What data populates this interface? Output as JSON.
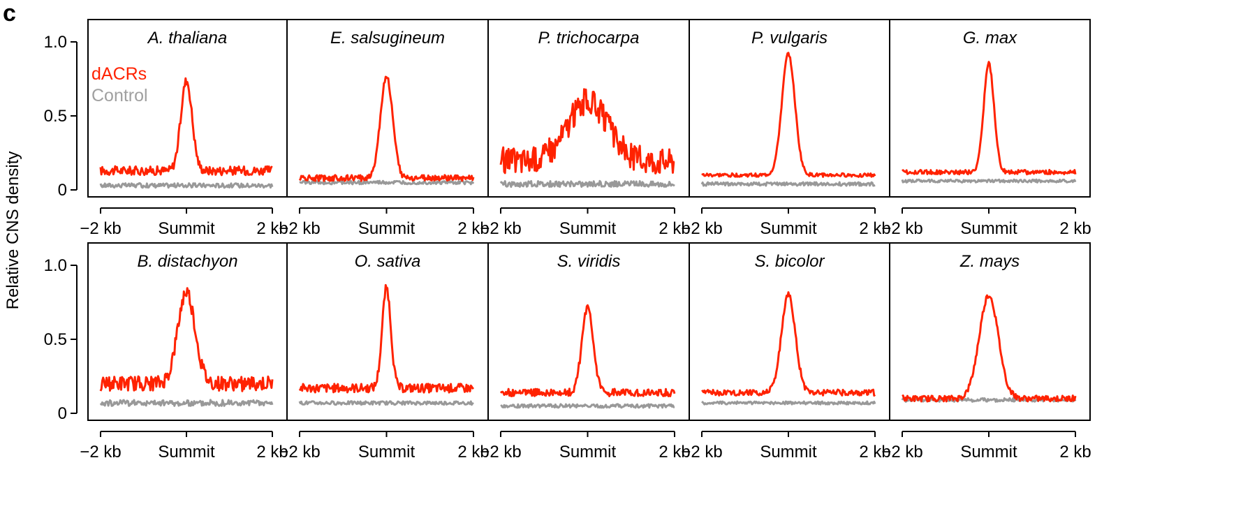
{
  "panel_letter": "c",
  "ylabel": "Relative CNS density",
  "yticks": [
    "0",
    "0.5",
    "1.0"
  ],
  "xticks": [
    "−2 kb",
    "Summit",
    "2 kb"
  ],
  "legend": [
    {
      "label": "dACRs",
      "color": "#ff2200"
    },
    {
      "label": "Control",
      "color": "#a0a0a0"
    }
  ],
  "colors": {
    "dacr": "#ff2200",
    "control": "#999999",
    "axis": "#000000"
  },
  "chart_data": {
    "type": "line",
    "ylabel": "Relative CNS density",
    "x_range": [
      -2,
      2
    ],
    "x_unit": "kb",
    "ylim": [
      0,
      1.1
    ],
    "grid": false,
    "legend_position": "top-left of first panel",
    "panels": [
      {
        "title": "A. thaliana",
        "dacr_baseline": 0.13,
        "dacr_peak": 0.74,
        "dacr_width": 0.13,
        "dacr_noise": 0.03,
        "control_level": 0.03,
        "control_noise": 0.015
      },
      {
        "title": "E. salsugineum",
        "dacr_baseline": 0.08,
        "dacr_peak": 0.77,
        "dacr_width": 0.14,
        "dacr_noise": 0.02,
        "control_level": 0.05,
        "control_noise": 0.012
      },
      {
        "title": "P. trichocarpa",
        "dacr_baseline": 0.2,
        "dacr_peak": 0.6,
        "dacr_width": 0.45,
        "dacr_noise": 0.09,
        "control_level": 0.04,
        "control_noise": 0.02
      },
      {
        "title": "P. vulgaris",
        "dacr_baseline": 0.1,
        "dacr_peak": 0.92,
        "dacr_width": 0.15,
        "dacr_noise": 0.012,
        "control_level": 0.04,
        "control_noise": 0.012
      },
      {
        "title": "G. max",
        "dacr_baseline": 0.12,
        "dacr_peak": 0.85,
        "dacr_width": 0.12,
        "dacr_noise": 0.015,
        "control_level": 0.06,
        "control_noise": 0.01
      },
      {
        "title": "B. distachyon",
        "dacr_baseline": 0.2,
        "dacr_peak": 0.82,
        "dacr_width": 0.2,
        "dacr_noise": 0.05,
        "control_level": 0.07,
        "control_noise": 0.02
      },
      {
        "title": "O. sativa",
        "dacr_baseline": 0.17,
        "dacr_peak": 0.85,
        "dacr_width": 0.1,
        "dacr_noise": 0.03,
        "control_level": 0.07,
        "control_noise": 0.012
      },
      {
        "title": "S. viridis",
        "dacr_baseline": 0.14,
        "dacr_peak": 0.72,
        "dacr_width": 0.13,
        "dacr_noise": 0.025,
        "control_level": 0.05,
        "control_noise": 0.012
      },
      {
        "title": "S. bicolor",
        "dacr_baseline": 0.14,
        "dacr_peak": 0.8,
        "dacr_width": 0.16,
        "dacr_noise": 0.02,
        "control_level": 0.07,
        "control_noise": 0.01
      },
      {
        "title": "Z. mays",
        "dacr_baseline": 0.1,
        "dacr_peak": 0.8,
        "dacr_width": 0.22,
        "dacr_noise": 0.02,
        "control_level": 0.09,
        "control_noise": 0.012
      }
    ]
  }
}
